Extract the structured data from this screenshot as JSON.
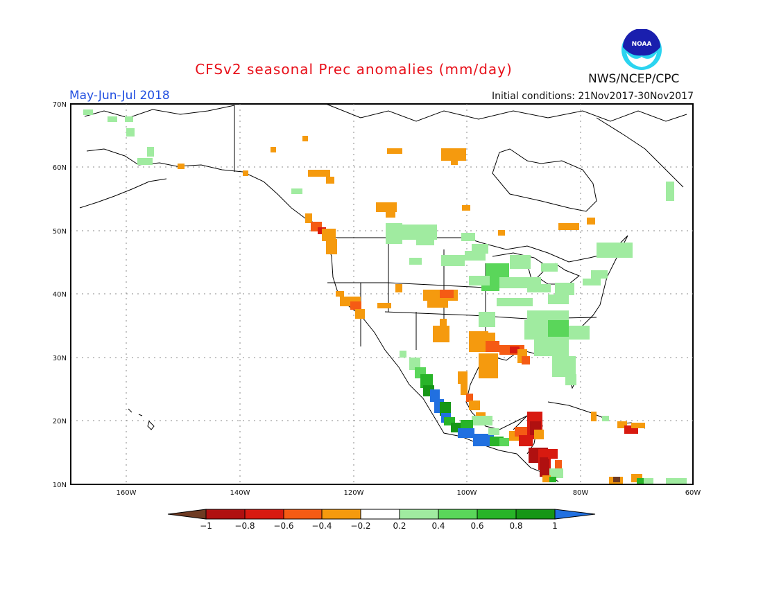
{
  "title": "CFSv2 seasonal Prec anomalies (mm/day)",
  "season": "May-Jun-Jul 2018",
  "initial_conditions": "Initial conditions: 21Nov2017-30Nov2017",
  "agency": "NWS/NCEP/CPC",
  "logo_text": "NOAA",
  "lat_labels": [
    "70N",
    "60N",
    "50N",
    "40N",
    "30N",
    "20N",
    "10N"
  ],
  "lon_labels": [
    "160W",
    "140W",
    "120W",
    "100W",
    "80W",
    "60W"
  ],
  "colorbar": {
    "labels": [
      "−1",
      "−0.8",
      "−0.6",
      "−0.4",
      "−0.2",
      "0.2",
      "0.4",
      "0.6",
      "0.8",
      "1"
    ],
    "colors": {
      "lt_-1": "#6e3a22",
      "-1_-0.8": "#b01010",
      "-0.8_-0.6": "#d81a10",
      "-0.6_-0.4": "#f55b14",
      "-0.4_-0.2": "#f59a0e",
      "-0.2_0.2": "#ffffff",
      "0.2_0.4": "#a0eba0",
      "0.4_0.6": "#5ad65a",
      "0.6_0.8": "#28b428",
      "0.8_1": "#169616",
      "gt_1": "#2170e0"
    }
  }
}
